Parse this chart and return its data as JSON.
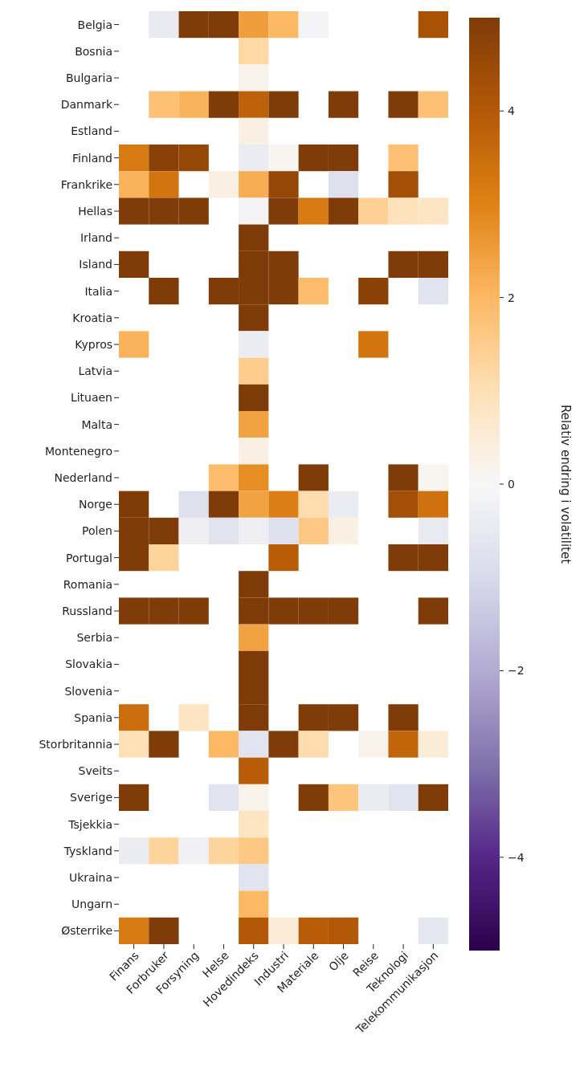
{
  "chart_data": {
    "type": "heatmap",
    "clabel": "Relativ endring i volatilitet",
    "categories": [
      "Finans",
      "Forbruker",
      "Forsyning",
      "Helse",
      "Hovedindeks",
      "Industri",
      "Materiale",
      "Olje",
      "Reise",
      "Teknologi",
      "Telekommunikasjon"
    ],
    "y_categories": [
      "Belgia",
      "Bosnia",
      "Bulgaria",
      "Danmark",
      "Estland",
      "Finland",
      "Frankrike",
      "Hellas",
      "Irland",
      "Island",
      "Italia",
      "Kroatia",
      "Kypros",
      "Latvia",
      "Lituaen",
      "Malta",
      "Montenegro",
      "Nederland",
      "Norge",
      "Polen",
      "Portugal",
      "Romania",
      "Russland",
      "Serbia",
      "Slovakia",
      "Slovenia",
      "Spania",
      "Storbritannia",
      "Sveits",
      "Sverige",
      "Tsjekkia",
      "Tyskland",
      "Ukraina",
      "Ungarn",
      "Østerrike"
    ],
    "cells": [
      [
        null,
        -0.5,
        5,
        5,
        2.5,
        2,
        -0.1,
        null,
        null,
        null,
        4.2
      ],
      [
        null,
        null,
        null,
        null,
        1.2,
        null,
        null,
        null,
        null,
        null,
        null
      ],
      [
        null,
        null,
        null,
        null,
        0.2,
        null,
        null,
        null,
        null,
        null,
        null
      ],
      [
        null,
        1.8,
        2.1,
        5,
        3.8,
        5,
        null,
        5,
        null,
        5,
        1.8
      ],
      [
        null,
        null,
        null,
        null,
        0.3,
        null,
        null,
        null,
        null,
        null,
        null
      ],
      [
        3.2,
        4.8,
        4.6,
        null,
        -0.4,
        0.1,
        5,
        5,
        null,
        1.8,
        null
      ],
      [
        2.1,
        3.3,
        null,
        0.3,
        2.2,
        4.6,
        null,
        -0.8,
        null,
        4.3,
        null
      ],
      [
        5,
        5,
        5,
        null,
        -0.1,
        5,
        3.2,
        5,
        1.4,
        0.9,
        0.8
      ],
      [
        null,
        null,
        null,
        null,
        5,
        null,
        null,
        null,
        null,
        null,
        null
      ],
      [
        5,
        null,
        null,
        null,
        5,
        5,
        null,
        null,
        null,
        5,
        5
      ],
      [
        null,
        5,
        null,
        5,
        5,
        5,
        1.9,
        null,
        4.8,
        null,
        -0.7
      ],
      [
        null,
        null,
        null,
        null,
        5,
        null,
        null,
        null,
        null,
        null,
        null
      ],
      [
        2.1,
        null,
        null,
        null,
        -0.4,
        null,
        null,
        null,
        3.3,
        null,
        null
      ],
      [
        null,
        null,
        null,
        null,
        1.5,
        null,
        null,
        null,
        null,
        null,
        null
      ],
      [
        null,
        null,
        null,
        null,
        5,
        null,
        null,
        null,
        null,
        null,
        null
      ],
      [
        null,
        null,
        null,
        null,
        2.4,
        null,
        null,
        null,
        null,
        null,
        null
      ],
      [
        null,
        null,
        null,
        null,
        0.3,
        null,
        null,
        null,
        null,
        null,
        null
      ],
      [
        null,
        null,
        null,
        1.9,
        2.8,
        null,
        5,
        null,
        null,
        5,
        0.1
      ],
      [
        5,
        null,
        -0.8,
        5,
        2.4,
        3.1,
        1.1,
        -0.4,
        null,
        4.3,
        3.4
      ],
      [
        5,
        5,
        -0.3,
        -0.7,
        -0.3,
        -0.8,
        1.6,
        0.3,
        null,
        null,
        -0.5
      ],
      [
        5,
        1.3,
        null,
        null,
        null,
        3.9,
        null,
        null,
        null,
        5,
        5
      ],
      [
        null,
        null,
        null,
        null,
        5,
        null,
        null,
        null,
        null,
        null,
        null
      ],
      [
        5,
        5,
        5,
        null,
        5,
        5,
        5,
        5,
        null,
        null,
        5
      ],
      [
        null,
        null,
        null,
        null,
        2.4,
        null,
        null,
        null,
        null,
        null,
        null
      ],
      [
        null,
        null,
        null,
        null,
        5,
        null,
        null,
        null,
        null,
        null,
        null
      ],
      [
        null,
        null,
        null,
        null,
        5,
        null,
        null,
        null,
        null,
        null,
        null
      ],
      [
        3.5,
        null,
        0.8,
        null,
        5,
        null,
        5,
        5,
        null,
        5,
        null
      ],
      [
        1,
        5,
        null,
        2,
        -0.7,
        5,
        1.1,
        null,
        0.2,
        3.7,
        0.5
      ],
      [
        null,
        null,
        null,
        null,
        3.9,
        null,
        null,
        null,
        null,
        null,
        null
      ],
      [
        5,
        null,
        null,
        -0.7,
        0.2,
        null,
        5,
        1.7,
        -0.4,
        -0.7,
        5
      ],
      [
        null,
        null,
        null,
        null,
        0.8,
        null,
        null,
        null,
        null,
        null,
        null
      ],
      [
        -0.4,
        1.3,
        -0.2,
        1.3,
        1.6,
        null,
        null,
        null,
        null,
        null,
        null
      ],
      [
        null,
        null,
        null,
        null,
        -0.7,
        null,
        null,
        null,
        null,
        null,
        null
      ],
      [
        null,
        null,
        null,
        null,
        2,
        null,
        null,
        null,
        null,
        null,
        null
      ],
      [
        3.2,
        5,
        null,
        null,
        4,
        0.5,
        3.9,
        4,
        null,
        null,
        -0.6
      ]
    ],
    "clim": [
      -5,
      5
    ],
    "cticks": [
      {
        "value": -4,
        "label": "−4"
      },
      {
        "value": -2,
        "label": "−2"
      },
      {
        "value": 0,
        "label": "0"
      },
      {
        "value": 2,
        "label": "2"
      },
      {
        "value": 4,
        "label": "4"
      }
    ]
  }
}
